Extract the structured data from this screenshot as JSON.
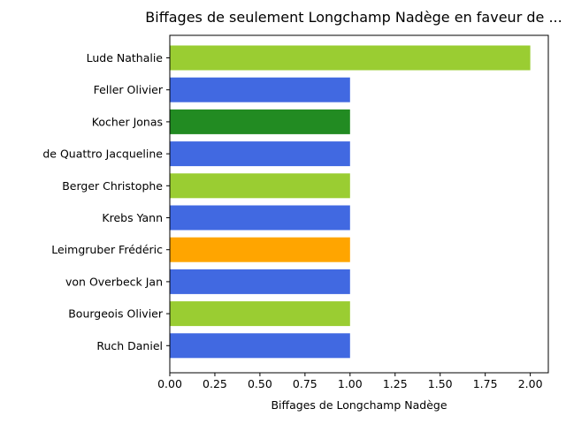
{
  "chart_data": {
    "type": "bar",
    "orientation": "horizontal",
    "title": "Biffages de seulement Longchamp Nadège en faveur de ...",
    "xlabel": "Biffages de Longchamp Nadège",
    "ylabel": "",
    "xlim": [
      0,
      2.1
    ],
    "x_ticks": [
      "0.00",
      "0.25",
      "0.50",
      "0.75",
      "1.00",
      "1.25",
      "1.50",
      "1.75",
      "2.00"
    ],
    "grid": false,
    "legend": "none",
    "categories": [
      "Lude Nathalie",
      "Feller Olivier",
      "Kocher Jonas",
      "de Quattro Jacqueline",
      "Berger Christophe",
      "Krebs Yann",
      "Leimgruber Frédéric",
      "von Overbeck Jan",
      "Bourgeois Olivier",
      "Ruch Daniel"
    ],
    "values": [
      2,
      1,
      1,
      1,
      1,
      1,
      1,
      1,
      1,
      1
    ],
    "colors": [
      "#9acd32",
      "#4169e1",
      "#228b22",
      "#4169e1",
      "#9acd32",
      "#4169e1",
      "#ffa500",
      "#4169e1",
      "#9acd32",
      "#4169e1"
    ]
  }
}
